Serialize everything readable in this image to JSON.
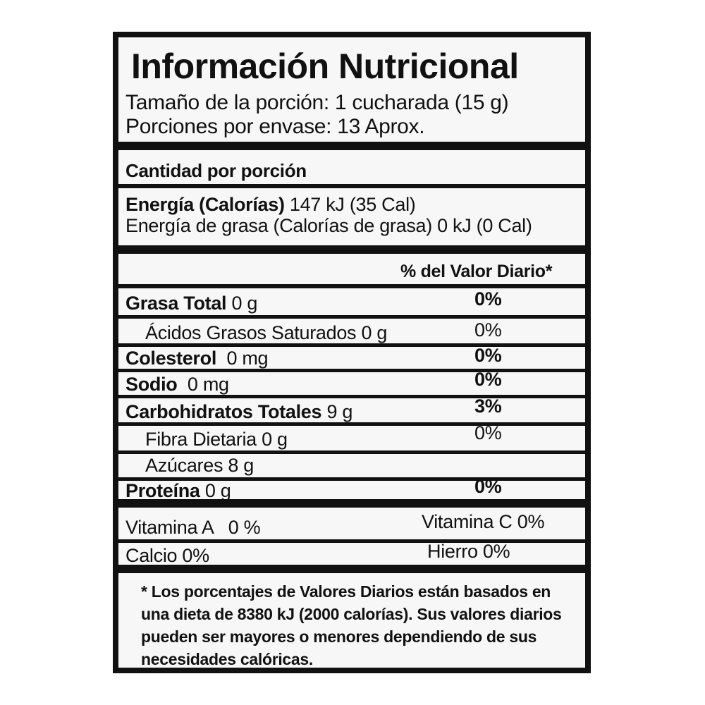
{
  "title": "Información Nutricional",
  "serving_size": "Tamaño de la porción: 1 cucharada (15 g)",
  "servings_per_container": "Porciones por envase: 13 Aprox.",
  "amount_per_serving": "Cantidad por porción",
  "energy": {
    "label": "Energía (Calorías)",
    "value": "147 kJ (35 Cal)"
  },
  "energy_fat": "Energía de grasa (Calorías de grasa) 0 kJ (0 Cal)",
  "daily_value_header": "% del Valor Diario*",
  "nutrients": [
    {
      "label": "Grasa Total",
      "amount": "0 g",
      "dv": "0%"
    },
    {
      "label": "Ácidos Grasos Saturados",
      "amount": "0 g",
      "dv": "0%"
    },
    {
      "label": "Colesterol",
      "amount": "0 mg",
      "dv": "0%"
    },
    {
      "label": "Sodio",
      "amount": "0 mg",
      "dv": "0%"
    },
    {
      "label": "Carbohidratos Totales",
      "amount": "9 g",
      "dv": "3%"
    },
    {
      "label": "Fibra Dietaria",
      "amount": "0 g",
      "dv": "0%"
    },
    {
      "label": "Azúcares",
      "amount": "8 g",
      "dv": ""
    },
    {
      "label": "Proteína",
      "amount": "0 g",
      "dv": "0%"
    }
  ],
  "vitamins": {
    "vitamin_a": "Vitamina A   0 %",
    "vitamin_c": "Vitamina C 0%",
    "calcium": "Calcio 0%",
    "iron": "Hierro 0%"
  },
  "footnote": "* Los porcentajes de Valores Diarios están basados en una dieta de 8380 kJ (2000 calorías). Sus valores diarios pueden ser mayores o menores dependiendo de sus necesidades calóricas."
}
